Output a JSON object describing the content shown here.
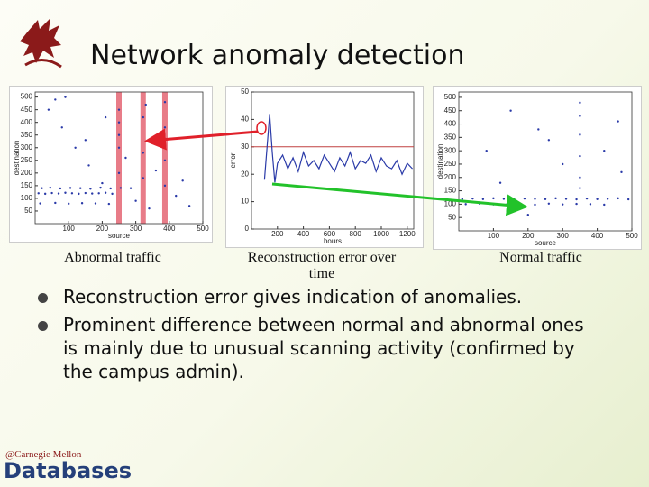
{
  "title": "Network anomaly detection",
  "captions": [
    "Abnormal traffic",
    "Reconstruction error over time",
    "Normal traffic"
  ],
  "bullets": [
    "Reconstruction error gives indication of anomalies.",
    "Prominent difference between normal and abnormal ones is mainly due to unusual scanning activity (confirmed by the campus admin)."
  ],
  "footer": {
    "brand": "@Carnegie Mellon",
    "group": "Databases"
  },
  "chart_data": [
    {
      "type": "scatter",
      "xlabel": "source",
      "ylabel": "destination",
      "color": "#2a3aa8",
      "xlim": [
        0,
        500
      ],
      "ylim": [
        0,
        520
      ],
      "xticks": [
        100,
        200,
        300,
        400,
        500
      ],
      "yticks": [
        50,
        100,
        150,
        200,
        250,
        300,
        350,
        400,
        450,
        500
      ],
      "highlight_x": [
        250,
        322,
        387
      ],
      "highlight_color": "#e05060",
      "x": [
        10,
        30,
        50,
        70,
        90,
        110,
        130,
        150,
        170,
        190,
        210,
        230,
        20,
        45,
        75,
        105,
        135,
        165,
        195,
        225,
        255,
        285,
        15,
        60,
        100,
        140,
        180,
        220,
        250,
        250,
        250,
        250,
        250,
        322,
        322,
        322,
        387,
        387,
        387,
        387,
        40,
        80,
        120,
        160,
        200,
        300,
        340,
        420,
        460,
        60,
        150,
        270,
        360,
        440,
        90,
        210,
        330
      ],
      "values": [
        120,
        118,
        121,
        119,
        122,
        120,
        118,
        121,
        119,
        120,
        122,
        118,
        140,
        142,
        139,
        141,
        140,
        138,
        142,
        139,
        141,
        140,
        80,
        82,
        79,
        81,
        80,
        78,
        200,
        300,
        400,
        450,
        350,
        180,
        280,
        420,
        150,
        250,
        380,
        480,
        450,
        380,
        300,
        230,
        160,
        90,
        60,
        110,
        70,
        490,
        330,
        260,
        210,
        170,
        500,
        420,
        470
      ]
    },
    {
      "type": "line",
      "xlabel": "hours",
      "ylabel": "error",
      "color": "#2a3aa8",
      "xlim": [
        0,
        1250
      ],
      "ylim": [
        0,
        50
      ],
      "xticks": [
        200,
        400,
        600,
        800,
        1000,
        1200
      ],
      "yticks": [
        0,
        10,
        20,
        30,
        40,
        50
      ],
      "threshold": 30,
      "threshold_color": "#c04040",
      "x": [
        100,
        120,
        140,
        160,
        180,
        200,
        240,
        280,
        320,
        360,
        400,
        440,
        480,
        520,
        560,
        600,
        640,
        680,
        720,
        760,
        800,
        840,
        880,
        920,
        960,
        1000,
        1040,
        1080,
        1120,
        1160,
        1200,
        1240
      ],
      "values": [
        18,
        30,
        42,
        28,
        17,
        24,
        27,
        22,
        26,
        21,
        28,
        23,
        25,
        22,
        27,
        24,
        21,
        26,
        23,
        28,
        22,
        25,
        24,
        27,
        21,
        26,
        23,
        22,
        25,
        20,
        24,
        22
      ]
    },
    {
      "type": "scatter",
      "xlabel": "source",
      "ylabel": "destination",
      "color": "#2a3aa8",
      "xlim": [
        0,
        500
      ],
      "ylim": [
        0,
        520
      ],
      "xticks": [
        100,
        200,
        300,
        400,
        500
      ],
      "yticks": [
        50,
        100,
        150,
        200,
        250,
        300,
        350,
        400,
        450,
        500
      ],
      "x": [
        10,
        40,
        70,
        100,
        130,
        160,
        190,
        220,
        250,
        280,
        310,
        340,
        370,
        400,
        430,
        460,
        490,
        20,
        60,
        100,
        140,
        180,
        220,
        260,
        300,
        340,
        380,
        420,
        350,
        350,
        350,
        350,
        350,
        350,
        80,
        150,
        230,
        300,
        420,
        460,
        120,
        260,
        470,
        200
      ],
      "values": [
        120,
        121,
        119,
        122,
        120,
        118,
        121,
        120,
        119,
        122,
        120,
        118,
        121,
        119,
        120,
        122,
        118,
        100,
        102,
        99,
        101,
        100,
        98,
        102,
        99,
        101,
        100,
        98,
        200,
        280,
        360,
        430,
        480,
        160,
        300,
        450,
        380,
        250,
        300,
        410,
        180,
        340,
        220,
        60
      ]
    }
  ]
}
